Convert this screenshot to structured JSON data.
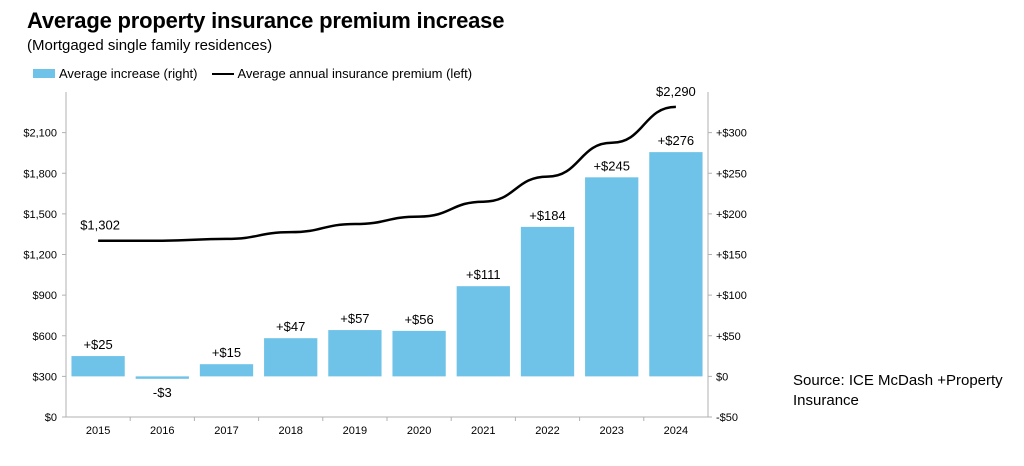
{
  "title": "Average property insurance premium increase",
  "subtitle": "(Mortgaged single family residences)",
  "source": "Source: ICE McDash +Property Insurance",
  "colors": {
    "bar": "#70C3E8",
    "line": "#000000",
    "axis": "#B0B0B0"
  },
  "chart_data": {
    "type": "bar",
    "title": "Average property insurance premium increase",
    "subtitle": "(Mortgaged single family residences)",
    "legend_position": "top-left",
    "grid": false,
    "categories": [
      "2015",
      "2016",
      "2017",
      "2018",
      "2019",
      "2020",
      "2021",
      "2022",
      "2023",
      "2024"
    ],
    "series": [
      {
        "name": "Average increase (right)",
        "type": "bar",
        "axis": "right",
        "values": [
          25,
          -3,
          15,
          47,
          57,
          56,
          111,
          184,
          245,
          276
        ],
        "labels": [
          "+$25",
          "-$3",
          "+$15",
          "+$47",
          "+$57",
          "+$56",
          "+$111",
          "+$184",
          "+$245",
          "+$276"
        ]
      },
      {
        "name": "Average annual insurance premium (left)",
        "type": "line",
        "axis": "left",
        "values": [
          1302,
          1302,
          1315,
          1365,
          1425,
          1480,
          1590,
          1775,
          2025,
          2290
        ],
        "labels": [
          "$1,302",
          "",
          "",
          "",
          "",
          "",
          "",
          "",
          "",
          "$2,290"
        ]
      }
    ],
    "y_left": {
      "range": [
        0,
        2400
      ],
      "ticks": [
        0,
        300,
        600,
        900,
        1200,
        1500,
        1800,
        2100
      ],
      "tick_labels": [
        "$0",
        "$300",
        "$600",
        "$900",
        "$1,200",
        "$1,500",
        "$1,800",
        "$2,100"
      ]
    },
    "y_right": {
      "range": [
        -50,
        350
      ],
      "ticks": [
        -50,
        0,
        50,
        100,
        150,
        200,
        250,
        300
      ],
      "tick_labels": [
        "-$50",
        "$0",
        "+$50",
        "+$100",
        "+$150",
        "+$200",
        "+$250",
        "+$300"
      ]
    }
  }
}
